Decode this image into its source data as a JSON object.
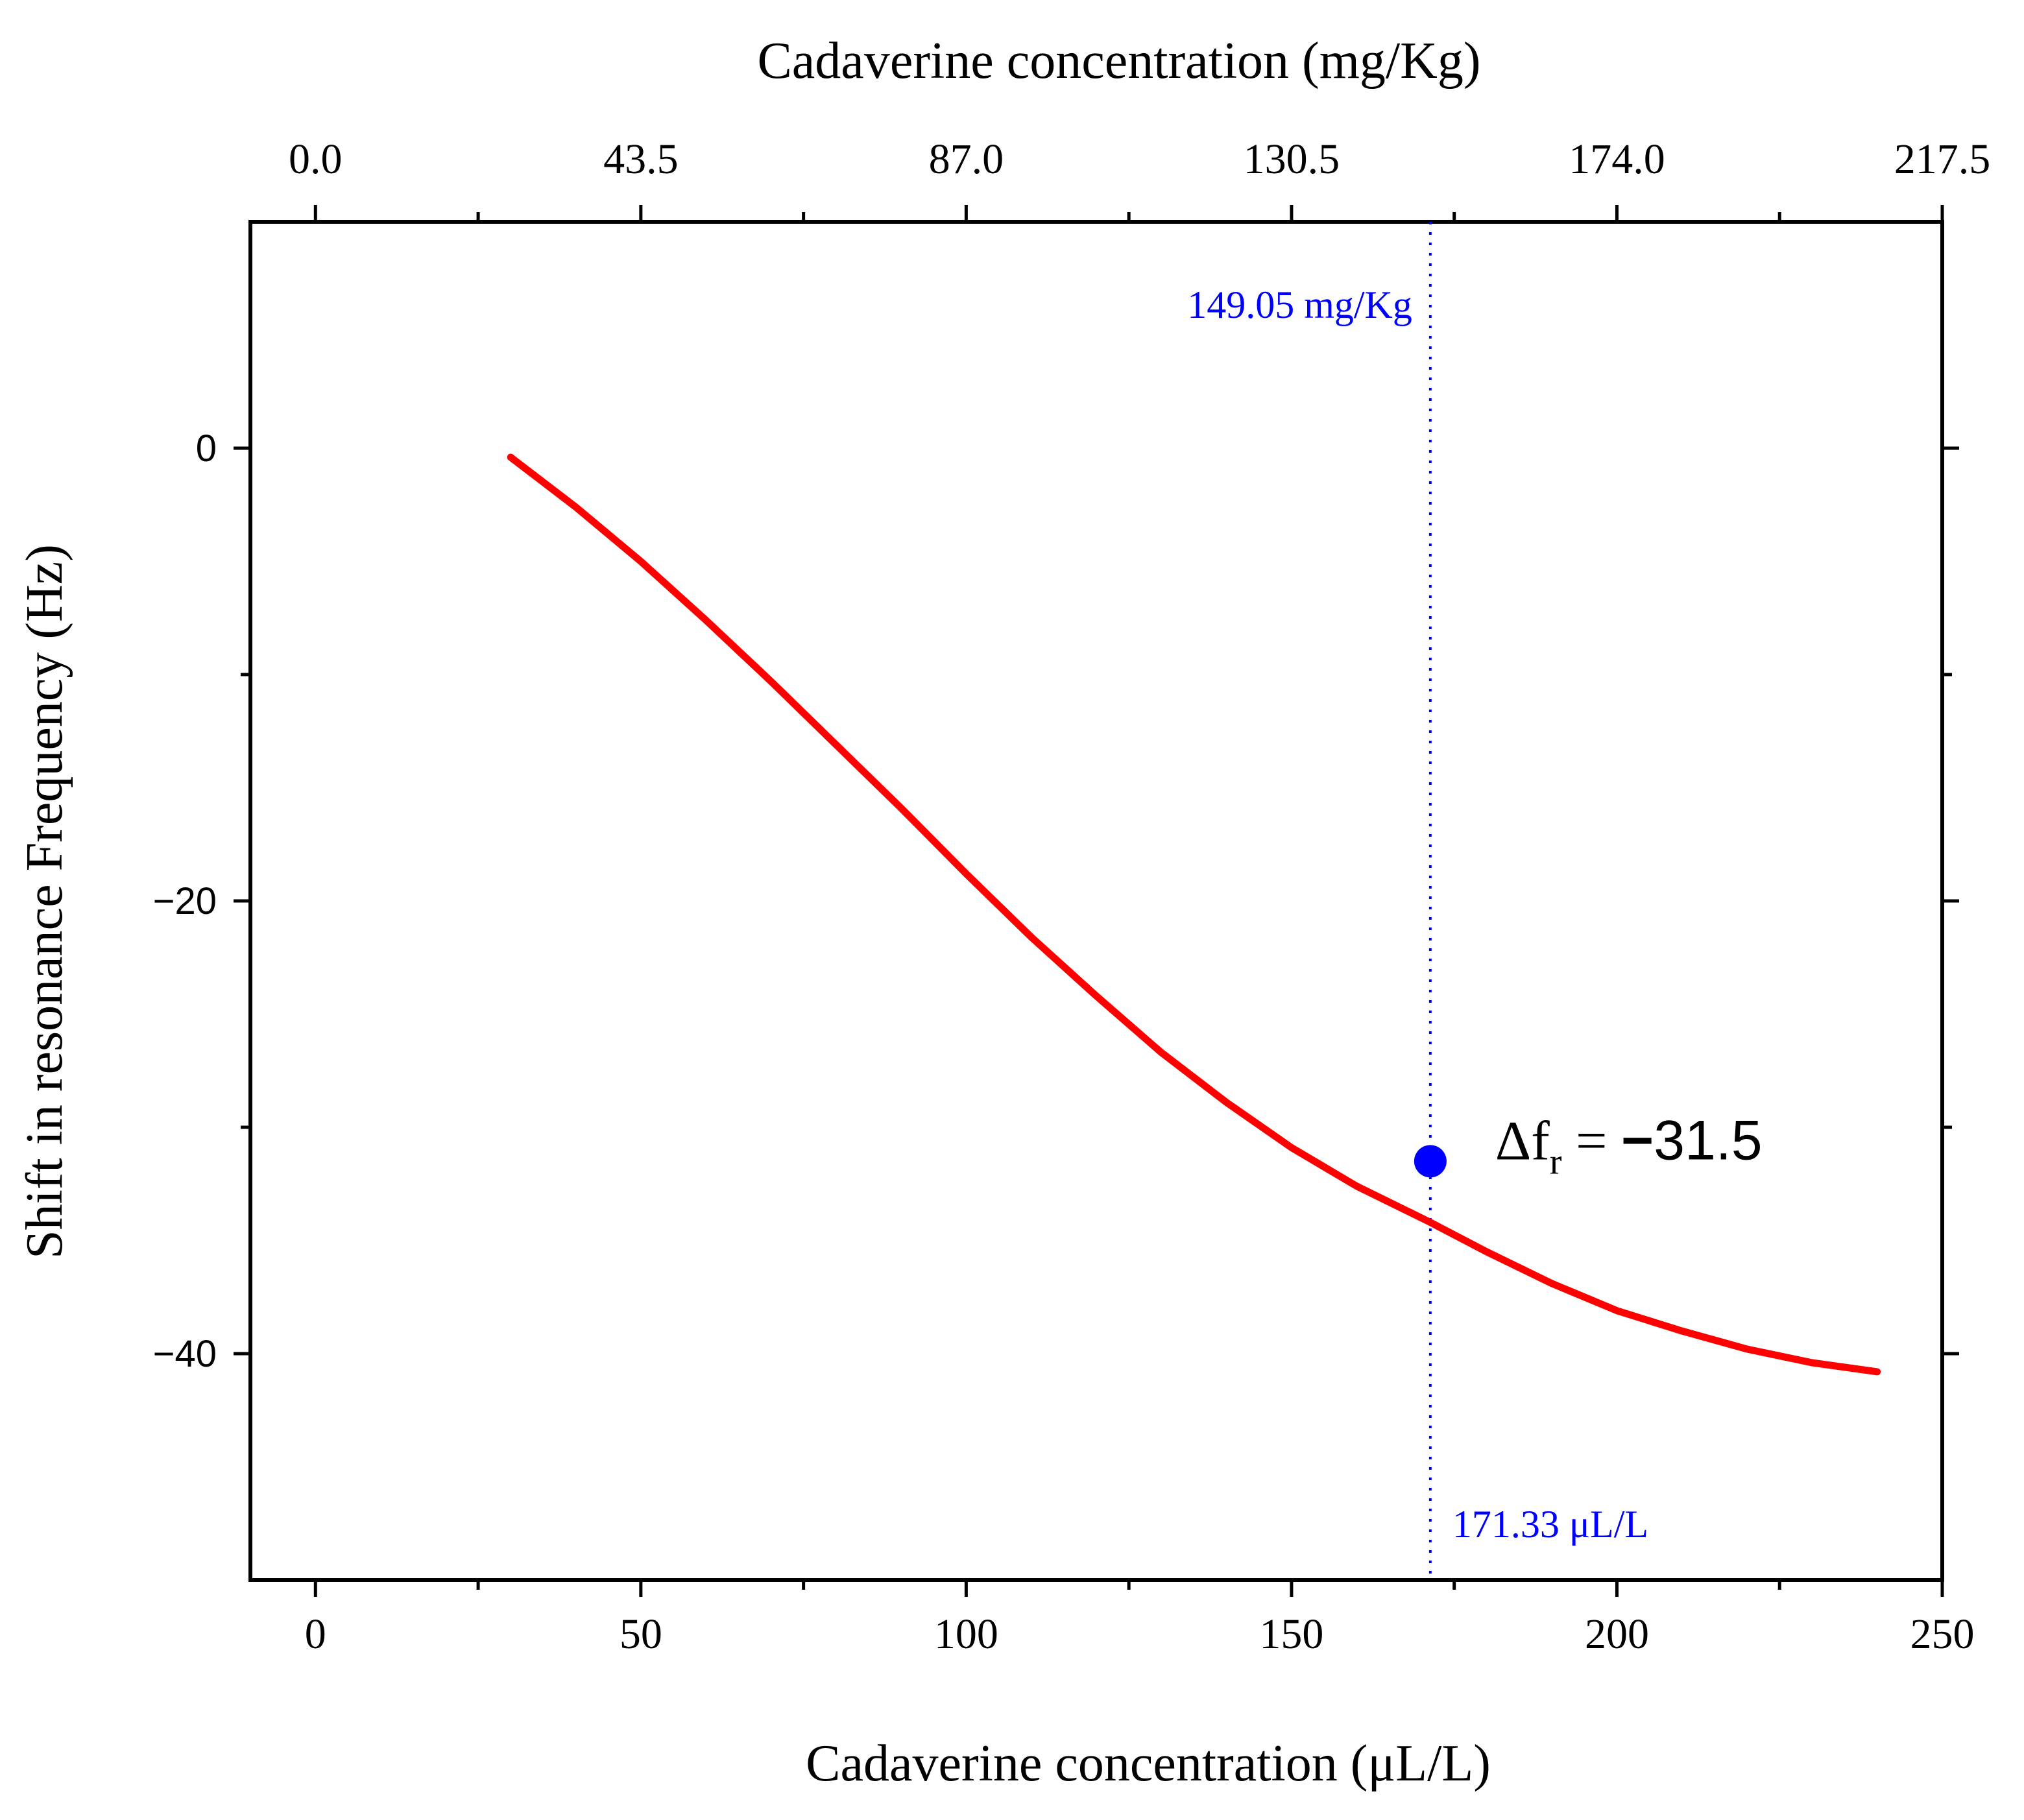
{
  "chart_data": {
    "type": "line",
    "title": "",
    "xlabel": "Cadaverine concentration (μL/L)",
    "x2label": "Cadaverine concentration (mg/Kg)",
    "ylabel": "Shift in resonance Frequency (Hz)",
    "xlim": [
      -10,
      250
    ],
    "ylim": [
      -50,
      10
    ],
    "xticks": [
      0,
      50,
      100,
      150,
      200,
      250
    ],
    "x2ticks": [
      "0.0",
      "43.5",
      "87.0",
      "130.5",
      "174.0",
      "217.5"
    ],
    "yticks": [
      0,
      -20,
      -40
    ],
    "yticklabels": [
      "0",
      "−20",
      "−40"
    ],
    "grid": false,
    "series": [
      {
        "name": "fit",
        "color": "#ff0000",
        "x": [
          30,
          40,
          50,
          60,
          70,
          80,
          90,
          100,
          110,
          120,
          130,
          140,
          150,
          160,
          171.33,
          180,
          190,
          200,
          210,
          220,
          230,
          240
        ],
        "y": [
          -0.4,
          -2.6,
          -5.0,
          -7.6,
          -10.3,
          -13.1,
          -15.9,
          -18.8,
          -21.6,
          -24.2,
          -26.7,
          -28.9,
          -30.9,
          -32.6,
          -34.2,
          -35.5,
          -36.9,
          -38.1,
          -39.0,
          -39.8,
          -40.4,
          -40.8
        ]
      }
    ],
    "marker": {
      "x": 171.33,
      "y": -31.5,
      "color": "#0000ff",
      "label_main": "Δf",
      "label_sub": "r",
      "label_eq": " = ",
      "label_minus": "−",
      "label_value": "31.5"
    },
    "reference_line": {
      "x": 171.33,
      "color": "#0000ff",
      "style": "dotted",
      "label_top": "149.05 mg/Kg",
      "label_bottom": "171.33 μL/L"
    }
  }
}
